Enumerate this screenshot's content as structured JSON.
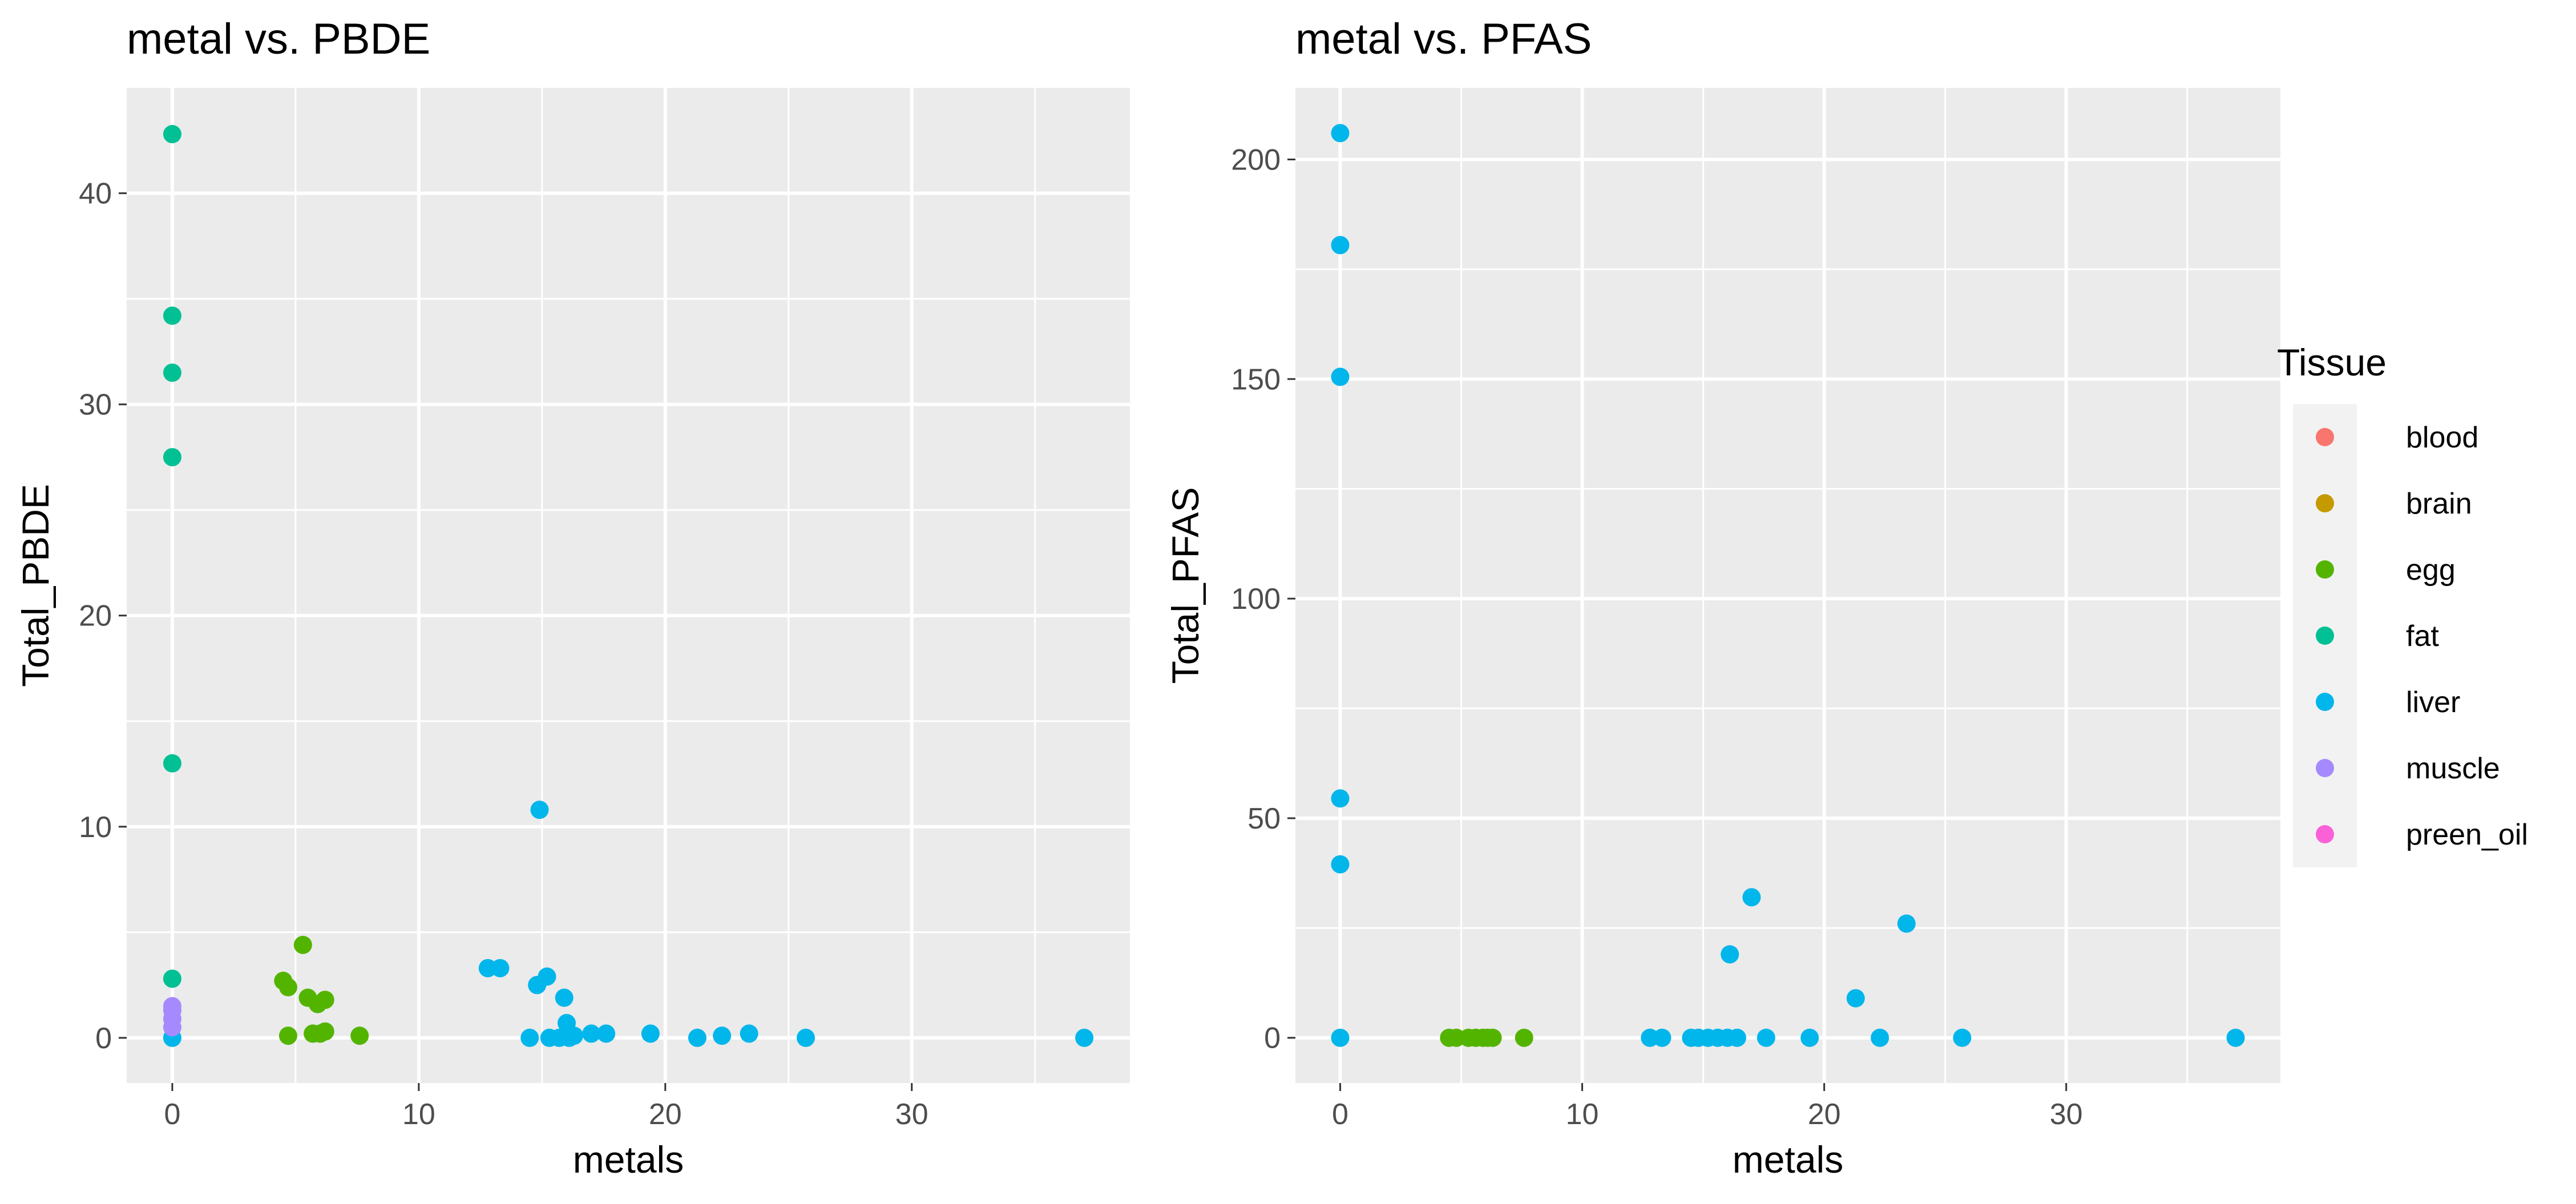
{
  "legend": {
    "title": "Tissue",
    "entries": [
      {
        "label": "blood",
        "color": "#F8766D"
      },
      {
        "label": "brain",
        "color": "#C49A00"
      },
      {
        "label": "egg",
        "color": "#53B400"
      },
      {
        "label": "fat",
        "color": "#00C094"
      },
      {
        "label": "liver",
        "color": "#00B6EB"
      },
      {
        "label": "muscle",
        "color": "#A58AFF"
      },
      {
        "label": "preen_oil",
        "color": "#FB61D7"
      }
    ]
  },
  "chart_data": [
    {
      "type": "scatter",
      "title": "metal vs. PBDE",
      "xlabel": "metals",
      "ylabel": "Total_PBDE",
      "xlim": [
        -1.85,
        38.85
      ],
      "ylim": [
        -2.14,
        44.99
      ],
      "xticks": [
        0,
        10,
        20,
        30
      ],
      "xtick_labels": [
        "0",
        "10",
        "20",
        "30"
      ],
      "yticks": [
        0,
        10,
        20,
        30,
        40
      ],
      "ytick_labels": [
        "0",
        "10",
        "20",
        "30",
        "40"
      ],
      "grid": true,
      "legend_position": "right",
      "series": [
        {
          "name": "egg",
          "color": "#53B400",
          "points": [
            [
              4.5,
              2.7
            ],
            [
              4.7,
              2.4
            ],
            [
              4.7,
              0.1
            ],
            [
              5.3,
              4.4
            ],
            [
              5.5,
              1.9
            ],
            [
              5.7,
              0.2
            ],
            [
              5.9,
              1.6
            ],
            [
              6.0,
              0.2
            ],
            [
              6.2,
              1.8
            ],
            [
              6.2,
              0.3
            ],
            [
              7.6,
              0.1
            ]
          ]
        },
        {
          "name": "fat",
          "color": "#00C094",
          "points": [
            [
              0,
              42.8
            ],
            [
              0,
              34.2
            ],
            [
              0,
              31.5
            ],
            [
              0,
              27.5
            ],
            [
              0,
              13.0
            ],
            [
              0,
              2.8
            ]
          ]
        },
        {
          "name": "liver",
          "color": "#00B6EB",
          "points": [
            [
              0,
              0.0
            ],
            [
              12.8,
              3.3
            ],
            [
              13.3,
              3.3
            ],
            [
              14.5,
              0.0
            ],
            [
              14.8,
              2.5
            ],
            [
              14.9,
              10.8
            ],
            [
              15.2,
              2.9
            ],
            [
              15.3,
              0.0
            ],
            [
              15.7,
              0.0
            ],
            [
              15.9,
              1.9
            ],
            [
              16.0,
              0.7
            ],
            [
              16.1,
              0.0
            ],
            [
              16.3,
              0.1
            ],
            [
              17.0,
              0.2
            ],
            [
              17.6,
              0.2
            ],
            [
              19.4,
              0.2
            ],
            [
              21.3,
              0.0
            ],
            [
              22.3,
              0.1
            ],
            [
              23.4,
              0.2
            ],
            [
              25.7,
              0.0
            ],
            [
              37.0,
              0.0
            ]
          ]
        },
        {
          "name": "muscle",
          "color": "#A58AFF",
          "points": [
            [
              0,
              1.5
            ],
            [
              0,
              1.3
            ],
            [
              0,
              0.9
            ],
            [
              0,
              0.5
            ]
          ]
        }
      ]
    },
    {
      "type": "scatter",
      "title": "metal vs. PFAS",
      "xlabel": "metals",
      "ylabel": "Total_PFAS",
      "xlim": [
        -1.85,
        38.85
      ],
      "ylim": [
        -10.3,
        216.3
      ],
      "xticks": [
        0,
        10,
        20,
        30
      ],
      "xtick_labels": [
        "0",
        "10",
        "20",
        "30"
      ],
      "yticks": [
        0,
        50,
        100,
        150,
        200
      ],
      "ytick_labels": [
        "0",
        "50",
        "100",
        "150",
        "200"
      ],
      "grid": true,
      "legend_position": "right",
      "series": [
        {
          "name": "egg",
          "color": "#53B400",
          "points": [
            [
              4.5,
              0
            ],
            [
              4.8,
              0
            ],
            [
              5.3,
              0
            ],
            [
              5.6,
              0
            ],
            [
              5.9,
              0
            ],
            [
              6.1,
              0
            ],
            [
              6.3,
              0
            ],
            [
              7.6,
              0
            ]
          ]
        },
        {
          "name": "liver",
          "color": "#00B6EB",
          "points": [
            [
              0,
              206.0
            ],
            [
              0,
              180.5
            ],
            [
              0,
              150.5
            ],
            [
              0,
              54.5
            ],
            [
              0,
              39.5
            ],
            [
              0,
              0
            ],
            [
              12.8,
              0
            ],
            [
              13.3,
              0
            ],
            [
              14.5,
              0
            ],
            [
              14.8,
              0
            ],
            [
              15.2,
              0
            ],
            [
              15.6,
              0
            ],
            [
              16.0,
              0
            ],
            [
              16.1,
              19.0
            ],
            [
              16.4,
              0
            ],
            [
              17.0,
              32.0
            ],
            [
              17.6,
              0
            ],
            [
              19.4,
              0
            ],
            [
              21.3,
              9.0
            ],
            [
              22.3,
              0
            ],
            [
              23.4,
              26.0
            ],
            [
              25.7,
              0
            ],
            [
              37.0,
              0
            ]
          ]
        }
      ]
    }
  ]
}
